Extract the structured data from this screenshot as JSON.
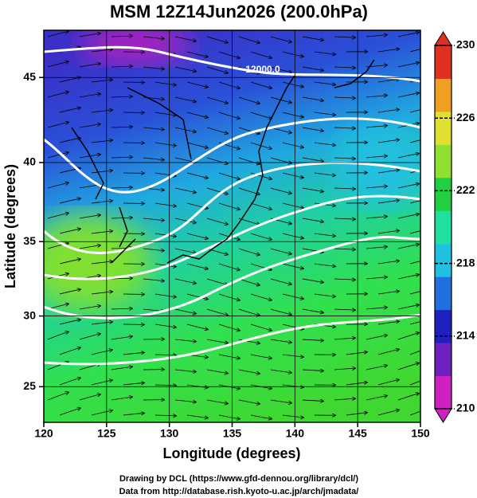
{
  "header": {
    "title": "MSM 12Z14Jun2026 (200.0hPa)"
  },
  "map": {
    "xlabel": "Longitude (degrees)",
    "ylabel": "Latitude  (degrees)",
    "xlim": [
      120,
      150
    ],
    "ylim": [
      22.4,
      47.6
    ],
    "xticks": [
      120,
      125,
      130,
      135,
      140,
      145,
      150
    ],
    "yticks": [
      25,
      30,
      35,
      40,
      45
    ],
    "grid": true,
    "contour_labels": [
      "12000.0"
    ]
  },
  "colorbar": {
    "lim": [
      210,
      230
    ],
    "ticks": [
      210,
      214,
      218,
      222,
      226,
      230
    ],
    "colors": [
      "#d020c0",
      "#7020c0",
      "#2020c0",
      "#2070e0",
      "#20c0e0",
      "#20e0a0",
      "#20d040",
      "#90e030",
      "#e0e030",
      "#f0a020",
      "#e03020"
    ]
  },
  "footer": {
    "lines": [
      "Drawing by DCL (https://www.gfd-dennou.org/library/dcl/)",
      "Data from http://database.rish.kyoto-u.ac.jp/arch/jmadata/"
    ]
  }
}
